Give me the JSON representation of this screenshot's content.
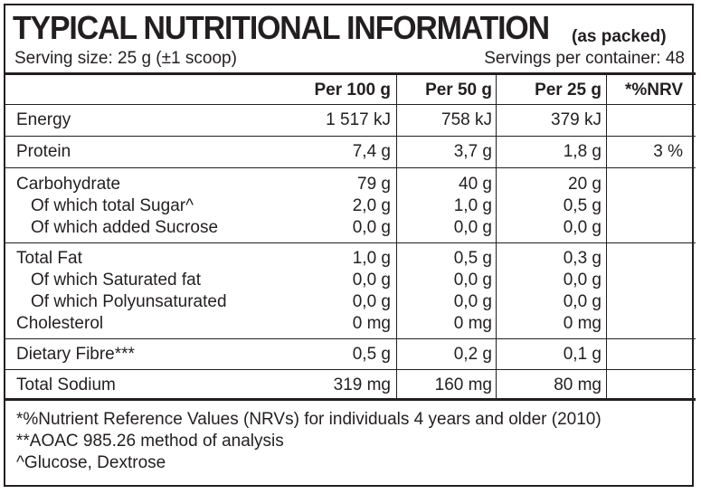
{
  "title": "TYPICAL NUTRITIONAL INFORMATION",
  "title_suffix": "(as packed)",
  "serving_size": "Serving size: 25 g (±1 scoop)",
  "servings_per_container": "Servings per container: 48",
  "columns": [
    "Per 100 g",
    "Per 50 g",
    "Per 25 g",
    "*%NRV"
  ],
  "rows": [
    {
      "label": "Energy",
      "v100": "1 517 kJ",
      "v50": "758 kJ",
      "v25": "379 kJ",
      "nrv": ""
    },
    {
      "label": "Protein",
      "v100": "7,4 g",
      "v50": "3,7 g",
      "v25": "1,8 g",
      "nrv": "3 %"
    },
    {
      "label": "Carbohydrate",
      "v100": "79 g",
      "v50": "40 g",
      "v25": "20 g",
      "nrv": ""
    },
    {
      "label": "Of which total Sugar^",
      "v100": "2,0 g",
      "v50": "1,0 g",
      "v25": "0,5 g",
      "nrv": ""
    },
    {
      "label": "Of which added Sucrose",
      "v100": "0,0 g",
      "v50": "0,0 g",
      "v25": "0,0 g",
      "nrv": ""
    },
    {
      "label": "Total Fat",
      "v100": "1,0 g",
      "v50": "0,5 g",
      "v25": "0,3 g",
      "nrv": ""
    },
    {
      "label": "Of which Saturated fat",
      "v100": "0,0 g",
      "v50": "0,0 g",
      "v25": "0,0 g",
      "nrv": ""
    },
    {
      "label": "Of which Polyunsaturated",
      "v100": "0,0 g",
      "v50": "0,0 g",
      "v25": "0,0 g",
      "nrv": ""
    },
    {
      "label": "Cholesterol",
      "v100": "0 mg",
      "v50": "0 mg",
      "v25": "0 mg",
      "nrv": ""
    },
    {
      "label": "Dietary Fibre***",
      "v100": "0,5 g",
      "v50": "0,2 g",
      "v25": "0,1 g",
      "nrv": ""
    },
    {
      "label": "Total Sodium",
      "v100": "319 mg",
      "v50": "160 mg",
      "v25": "80 mg",
      "nrv": ""
    }
  ],
  "footnotes": [
    "*%Nutrient Reference Values (NRVs) for individuals 4 years and older (2010)",
    "**AOAC 985.26 method of analysis",
    "^Glucose, Dextrose"
  ]
}
